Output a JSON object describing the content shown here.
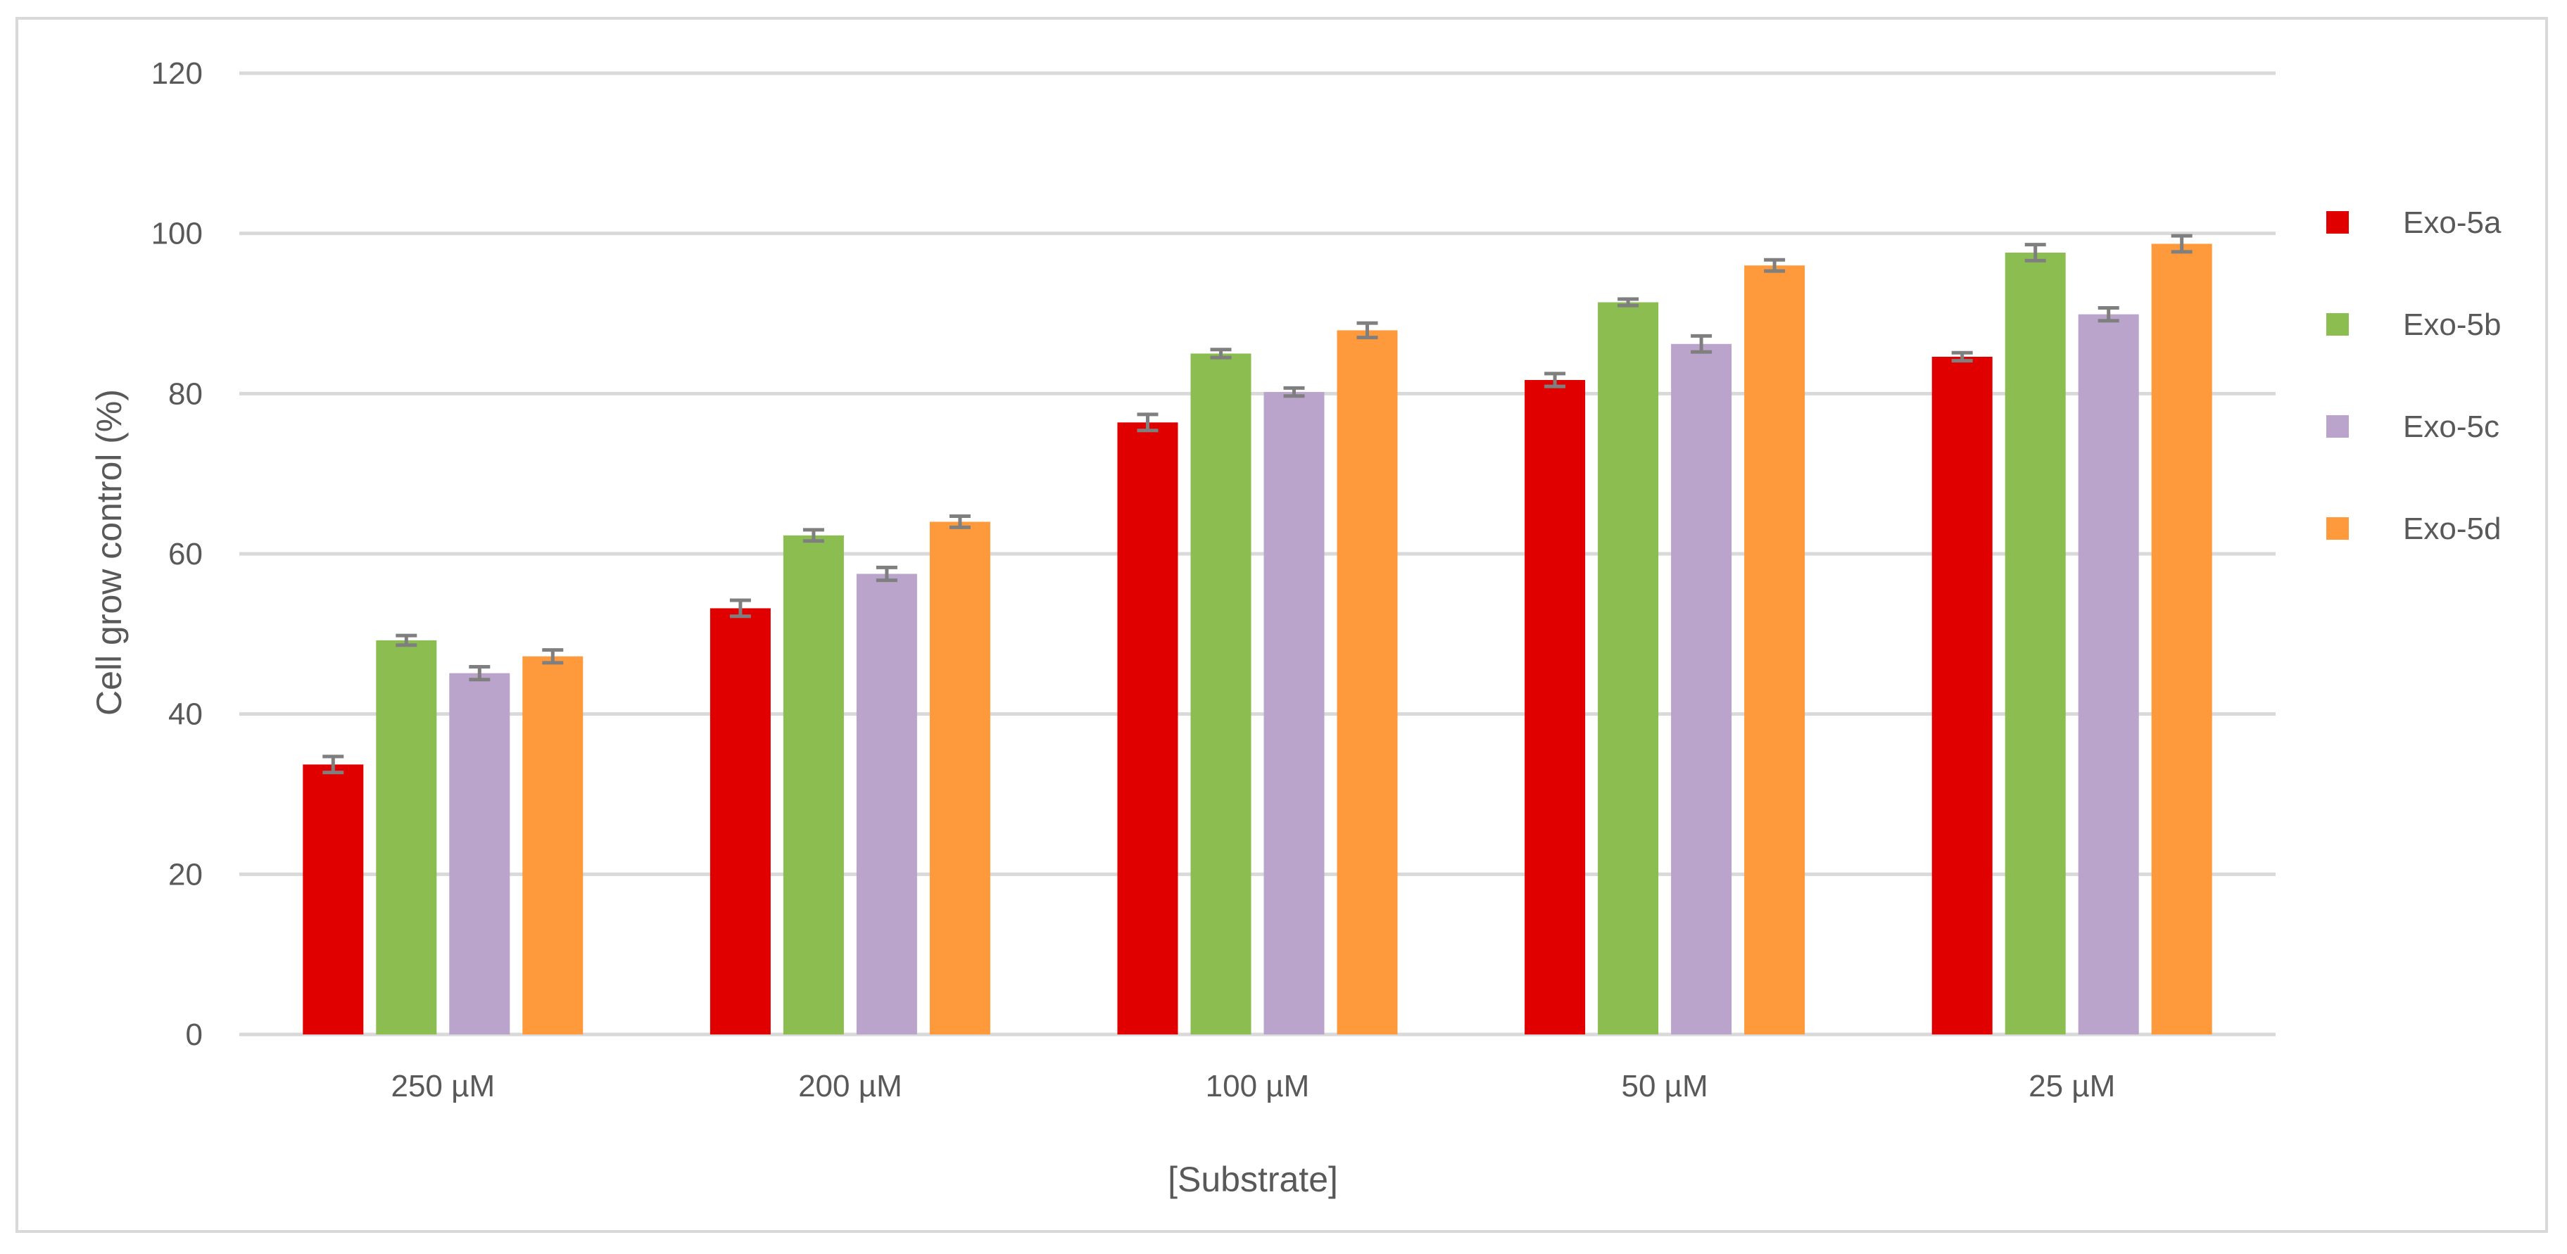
{
  "chart_data": {
    "type": "bar",
    "title": "",
    "xlabel": "[Substrate]",
    "ylabel": "Cell grow control  (%)",
    "ylim": [
      0,
      120
    ],
    "yticks": [
      0,
      20,
      40,
      60,
      80,
      100,
      120
    ],
    "grid": true,
    "legend_position": "right",
    "categories": [
      "250 µM",
      "200 µM",
      "100 µM",
      "50 µM",
      "25 µM"
    ],
    "series": [
      {
        "name": "Exo-5a",
        "color": "#e00000",
        "values": [
          33.7,
          53.2,
          76.4,
          81.7,
          84.6
        ],
        "errors": [
          1.0,
          1.0,
          1.0,
          0.8,
          0.5
        ]
      },
      {
        "name": "Exo-5b",
        "color": "#8bbd50",
        "values": [
          49.2,
          62.3,
          85.0,
          91.4,
          97.6
        ],
        "errors": [
          0.6,
          0.7,
          0.5,
          0.4,
          1.0
        ]
      },
      {
        "name": "Exo-5c",
        "color": "#bba4cb",
        "values": [
          45.1,
          57.5,
          80.2,
          86.2,
          89.9
        ],
        "errors": [
          0.8,
          0.8,
          0.5,
          1.0,
          0.8
        ]
      },
      {
        "name": "Exo-5d",
        "color": "#ff9a3c",
        "values": [
          47.2,
          64.0,
          87.9,
          96.0,
          98.7
        ],
        "errors": [
          0.8,
          0.7,
          0.9,
          0.7,
          1.0
        ]
      }
    ]
  }
}
